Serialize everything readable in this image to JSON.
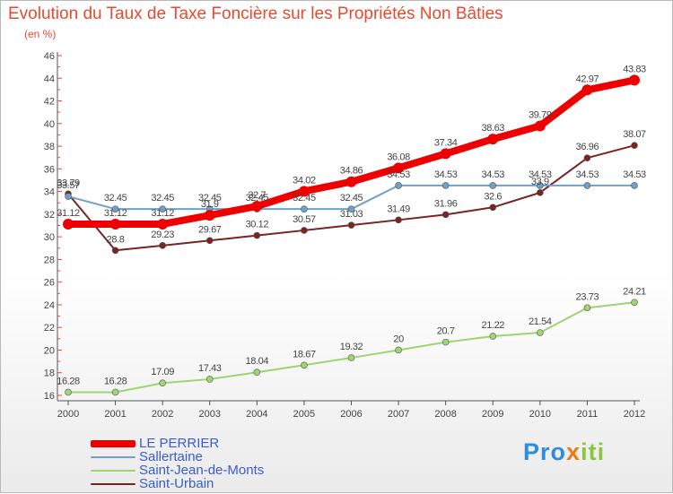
{
  "title": "Evolution du Taux de Taxe Foncière sur les Propriétés Non Bâties",
  "subtitle": "(en %)",
  "logo": {
    "letters": [
      "P",
      "r",
      "o",
      "x",
      "i",
      "t",
      "i"
    ],
    "colors": [
      "#2f8ddb",
      "#2f8ddb",
      "#2f8ddb",
      "#f07a12",
      "#8cc63e",
      "#8cc63e",
      "#8cc63e"
    ]
  },
  "chart_data": {
    "type": "line",
    "x": [
      2000,
      2001,
      2002,
      2003,
      2004,
      2005,
      2006,
      2007,
      2008,
      2009,
      2010,
      2011,
      2012
    ],
    "ylim": [
      16,
      46
    ],
    "yticks": [
      16,
      18,
      20,
      22,
      24,
      26,
      28,
      30,
      32,
      34,
      36,
      38,
      40,
      42,
      44,
      46
    ],
    "grid": false,
    "legend_position": "bottom-left",
    "series": [
      {
        "name": "LE PERRIER",
        "color": "#ee0000",
        "values": [
          31.12,
          31.12,
          31.12,
          31.9,
          32.7,
          34.02,
          34.86,
          36.08,
          37.34,
          38.63,
          39.79,
          42.97,
          43.83
        ],
        "labels": [
          "31.12",
          "31.12",
          "31.12",
          "31.9",
          "32.7",
          "34.02",
          "34.86",
          "36.08",
          "37.34",
          "38.63",
          "39.79",
          "42.97",
          "43.83"
        ]
      },
      {
        "name": "Sallertaine",
        "color": "#6fa0c8",
        "values": [
          33.57,
          32.45,
          32.45,
          32.45,
          32.45,
          32.45,
          32.45,
          34.53,
          34.53,
          34.53,
          34.53,
          34.53,
          34.53
        ],
        "labels": [
          "33.57",
          "32.45",
          "32.45",
          "32.45",
          "32.45",
          "32.45",
          "32.45",
          "34.53",
          "34.53",
          "34.53",
          "34.53",
          "34.53",
          "34.53"
        ]
      },
      {
        "name": "Saint-Jean-de-Monts",
        "color": "#9ed572",
        "values": [
          16.28,
          16.28,
          17.09,
          17.43,
          18.04,
          18.67,
          19.32,
          20,
          20.7,
          21.22,
          21.54,
          23.73,
          24.21
        ],
        "labels": [
          "16.28",
          "16.28",
          "17.09",
          "17.43",
          "18.04",
          "18.67",
          "19.32",
          "20",
          "20.7",
          "21.22",
          "21.54",
          "23.73",
          "24.21"
        ]
      },
      {
        "name": "Saint-Urbain",
        "color": "#7a2323",
        "values": [
          33.79,
          28.8,
          29.23,
          29.67,
          30.12,
          30.57,
          31.03,
          31.49,
          31.96,
          32.6,
          33.9,
          36.96,
          38.07
        ],
        "labels": [
          "33.79",
          "28.8",
          "29.23",
          "29.67",
          "30.12",
          "30.57",
          "31.03",
          "31.49",
          "31.96",
          "32.6",
          "33.9",
          "36.96",
          "38.07"
        ]
      }
    ]
  }
}
